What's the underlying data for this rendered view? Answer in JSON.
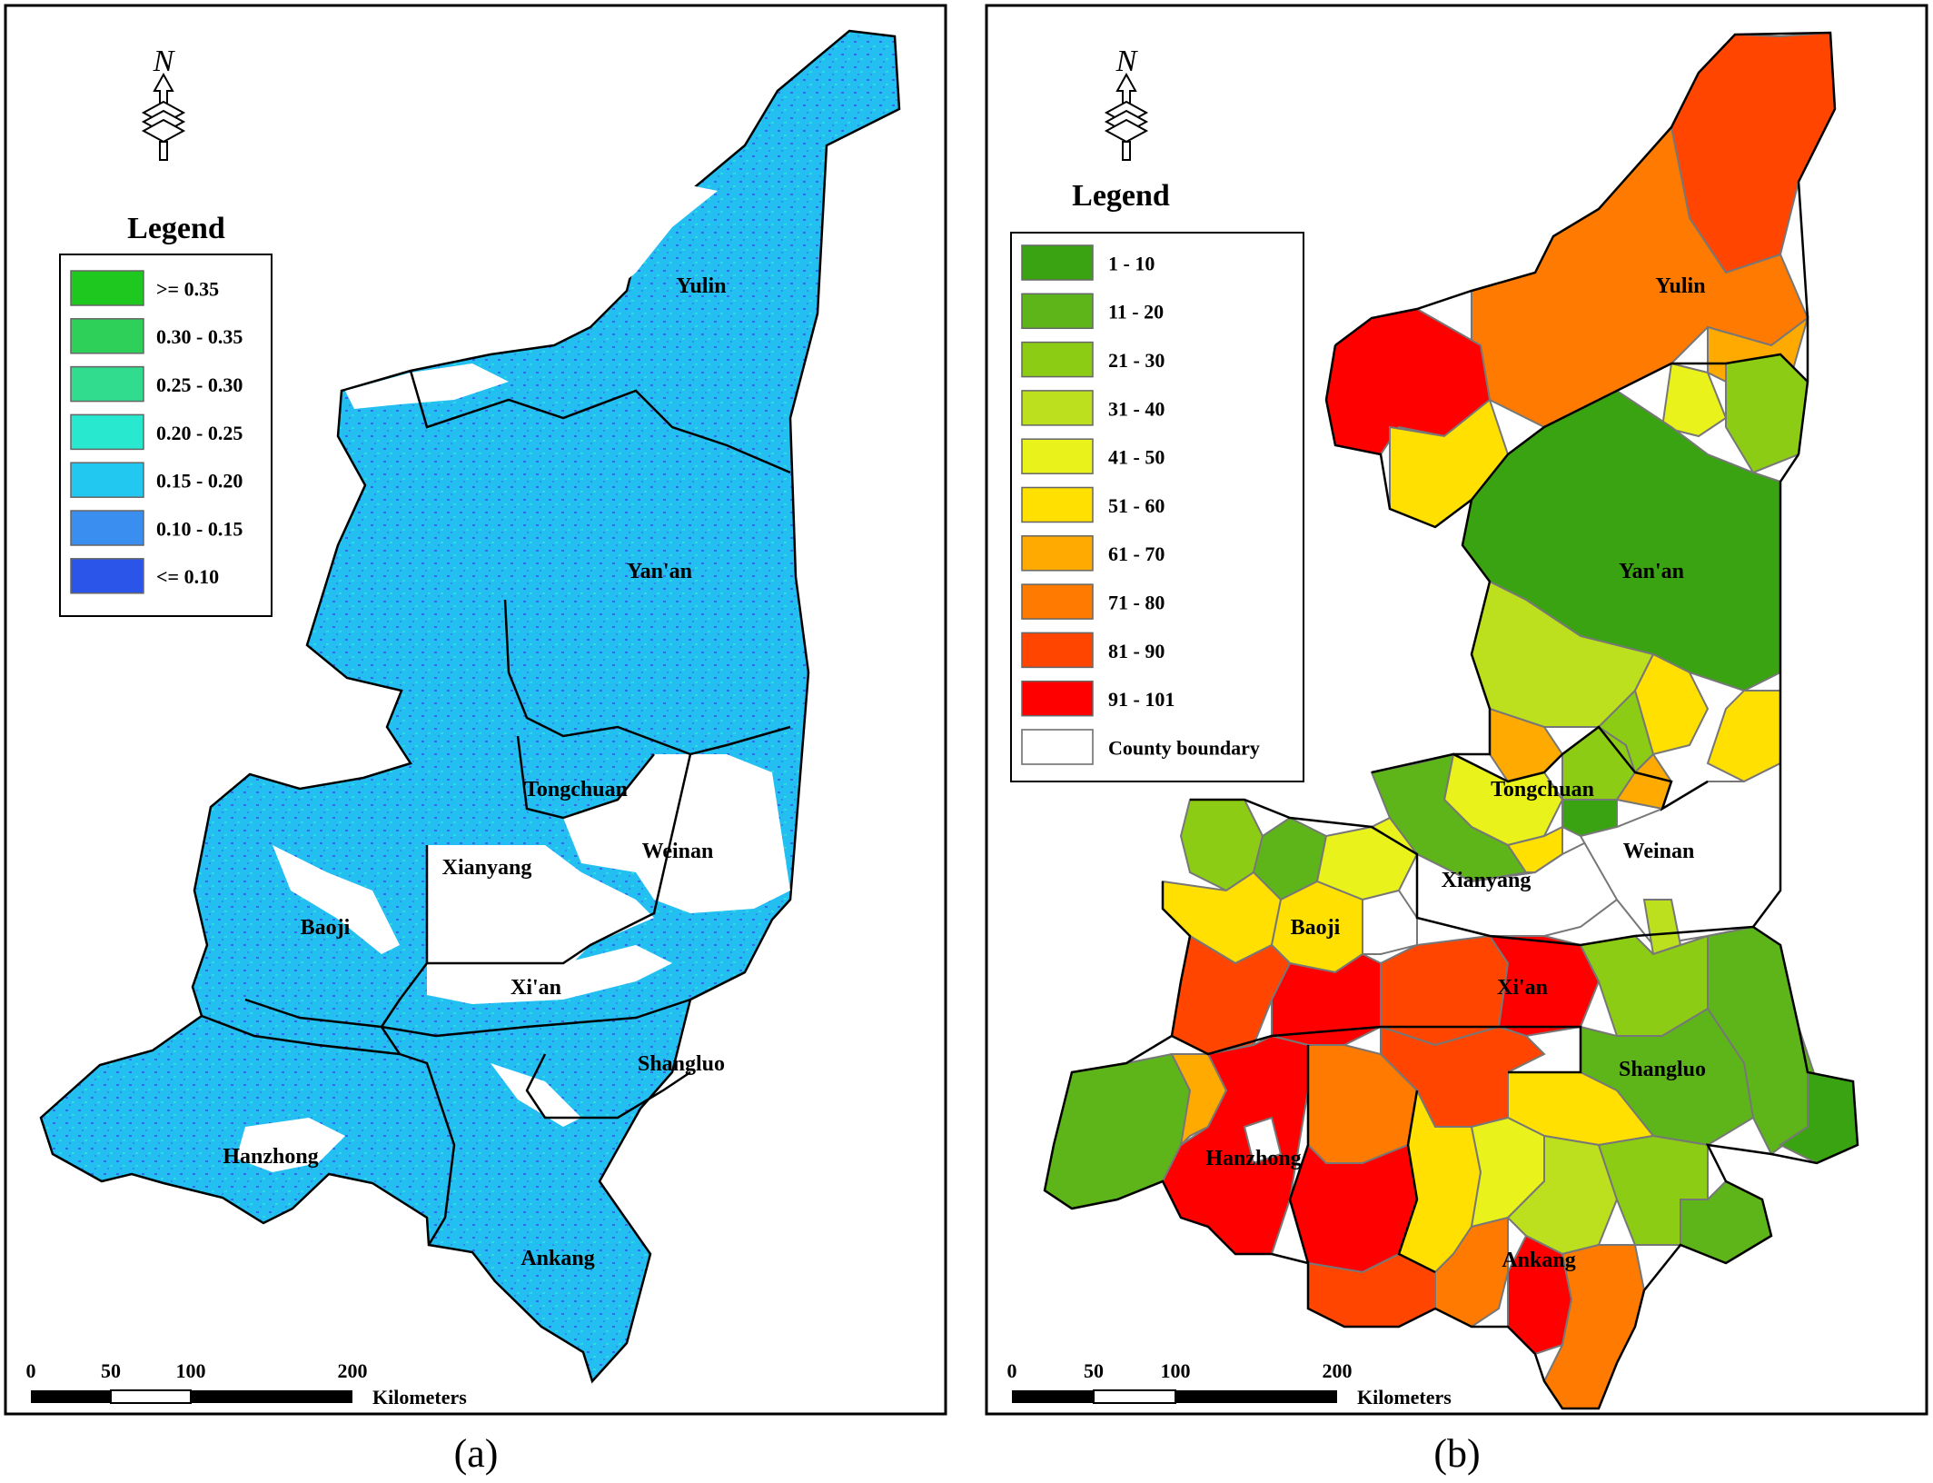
{
  "panels": [
    {
      "id": "a",
      "caption": "(a)",
      "north_label": "N",
      "legend": {
        "title": "Legend",
        "items": [
          {
            "label": ">= 0.35",
            "color": "#1ec81e"
          },
          {
            "label": "0.30 - 0.35",
            "color": "#2ed05a"
          },
          {
            "label": "0.25 - 0.30",
            "color": "#31dc8f"
          },
          {
            "label": "0.20 - 0.25",
            "color": "#28e8cf"
          },
          {
            "label": "0.15 - 0.20",
            "color": "#22c8ef"
          },
          {
            "label": "0.10 - 0.15",
            "color": "#3a8ef0"
          },
          {
            "label": "<= 0.10",
            "color": "#2a55e8"
          }
        ]
      },
      "regions": [
        {
          "name": "Yulin"
        },
        {
          "name": "Yan'an"
        },
        {
          "name": "Tongchuan"
        },
        {
          "name": "Xianyang"
        },
        {
          "name": "Weinan"
        },
        {
          "name": "Baoji"
        },
        {
          "name": "Xi'an"
        },
        {
          "name": "Shangluo"
        },
        {
          "name": "Hanzhong"
        },
        {
          "name": "Ankang"
        }
      ],
      "scale_bar": {
        "ticks": [
          "0",
          "50",
          "100",
          "200"
        ],
        "unit": "Kilometers"
      }
    },
    {
      "id": "b",
      "caption": "(b)",
      "north_label": "N",
      "legend": {
        "title": "Legend",
        "items": [
          {
            "label": "1 - 10",
            "color": "#3aa312"
          },
          {
            "label": "11 - 20",
            "color": "#5db51a"
          },
          {
            "label": "21 - 30",
            "color": "#8ccc14"
          },
          {
            "label": "31 - 40",
            "color": "#bde01e"
          },
          {
            "label": "41 - 50",
            "color": "#e9f21a"
          },
          {
            "label": "51 - 60",
            "color": "#ffe000"
          },
          {
            "label": "61 - 70",
            "color": "#ffaa00"
          },
          {
            "label": "71 - 80",
            "color": "#ff7a00"
          },
          {
            "label": "81 - 90",
            "color": "#ff4500"
          },
          {
            "label": "91 - 101",
            "color": "#ff0000"
          },
          {
            "label": "County boundary",
            "color": "#ffffff"
          }
        ]
      },
      "regions": [
        {
          "name": "Yulin"
        },
        {
          "name": "Yan'an"
        },
        {
          "name": "Tongchuan"
        },
        {
          "name": "Xianyang"
        },
        {
          "name": "Weinan"
        },
        {
          "name": "Baoji"
        },
        {
          "name": "Xi'an"
        },
        {
          "name": "Shangluo"
        },
        {
          "name": "Hanzhong"
        },
        {
          "name": "Ankang"
        }
      ],
      "scale_bar": {
        "ticks": [
          "0",
          "50",
          "100",
          "200"
        ],
        "unit": "Kilometers"
      }
    }
  ]
}
